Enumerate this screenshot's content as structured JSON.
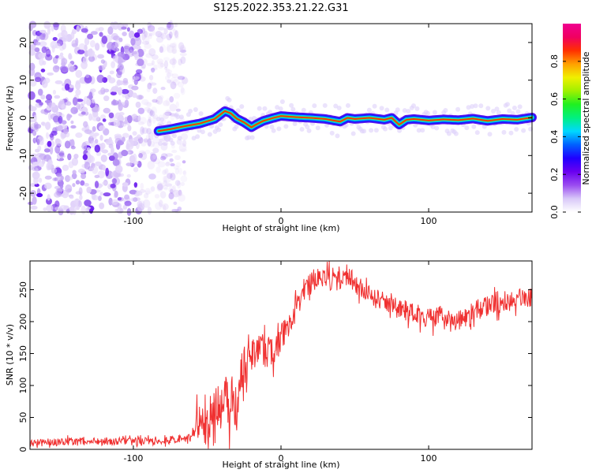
{
  "figure_title": "S125.2022.353.21.22.G31",
  "chart_data": [
    {
      "type": "heatmap",
      "xlabel": "Height of straight line (km)",
      "ylabel": "Frequency (Hz)",
      "xlim": [
        -170,
        170
      ],
      "ylim": [
        -25,
        25
      ],
      "xticks": [
        -100,
        0,
        100
      ],
      "yticks": [
        -20,
        -10,
        0,
        10,
        20
      ],
      "colorbar": {
        "label": "Normalized spectral amplitude",
        "range": [
          0,
          1
        ],
        "ticks": [
          0.0,
          0.2,
          0.4,
          0.6,
          0.8
        ],
        "colormap": [
          "#ffffff",
          "#d8c8f8",
          "#9a4cf0",
          "#6a00f0",
          "#2000ff",
          "#0060ff",
          "#00d8ff",
          "#00f080",
          "#20f020",
          "#a0f000",
          "#f0f000",
          "#ffa000",
          "#ff3000",
          "#f00060",
          "#f00090"
        ]
      },
      "noise_region_x": [
        -170,
        -65
      ],
      "signal_start_x": -83,
      "ridge": {
        "x": [
          -83,
          -75,
          -65,
          -55,
          -45,
          -38,
          -34,
          -30,
          -25,
          -20,
          -17,
          -12,
          -5,
          0,
          10,
          20,
          30,
          40,
          45,
          50,
          60,
          70,
          75,
          80,
          85,
          90,
          100,
          110,
          120,
          130,
          140,
          150,
          160,
          170
        ],
        "y": [
          -3.5,
          -3,
          -2.2,
          -1.5,
          -0.3,
          1.8,
          1.2,
          -0.2,
          -1.2,
          -2.5,
          -1.8,
          -0.8,
          0.0,
          0.5,
          0.2,
          0.0,
          -0.3,
          -1.0,
          0.0,
          -0.3,
          0.0,
          -0.5,
          0.0,
          -1.8,
          -0.5,
          -0.3,
          -0.7,
          -0.4,
          -0.6,
          -0.2,
          -0.8,
          -0.3,
          -0.5,
          0.1
        ]
      }
    },
    {
      "type": "line",
      "xlabel": "Height of straight line (km)",
      "ylabel": "SNR (10 * v/v)",
      "xlim": [
        -170,
        170
      ],
      "ylim": [
        0,
        295
      ],
      "xticks": [
        -100,
        0,
        100
      ],
      "yticks": [
        0,
        50,
        100,
        150,
        200,
        250
      ],
      "color": "#f03030",
      "series": [
        {
          "x": [
            -170,
            -150,
            -120,
            -100,
            -80,
            -60,
            -52,
            -47,
            -43,
            -40,
            -37,
            -35,
            -33,
            -30,
            -27,
            -25,
            -22,
            -18,
            -15,
            -10,
            -5,
            0,
            5,
            10,
            15,
            20,
            25,
            30,
            35,
            40,
            45,
            50,
            55,
            60,
            70,
            80,
            90,
            100,
            110,
            120,
            130,
            140,
            150,
            160,
            170
          ],
          "y": [
            10,
            12,
            13,
            12,
            14,
            18,
            35,
            55,
            70,
            60,
            85,
            50,
            90,
            60,
            130,
            125,
            140,
            150,
            160,
            150,
            155,
            170,
            200,
            230,
            245,
            260,
            270,
            268,
            265,
            262,
            275,
            258,
            250,
            240,
            230,
            220,
            215,
            205,
            210,
            200,
            215,
            225,
            230,
            235,
            240
          ]
        }
      ],
      "noise_amplitude": [
        {
          "x_from": -170,
          "x_to": -60,
          "amp": 6
        },
        {
          "x_from": -60,
          "x_to": -25,
          "amp": 35
        },
        {
          "x_from": -25,
          "x_to": 15,
          "amp": 25
        },
        {
          "x_from": 15,
          "x_to": 170,
          "amp": 16
        }
      ]
    }
  ]
}
